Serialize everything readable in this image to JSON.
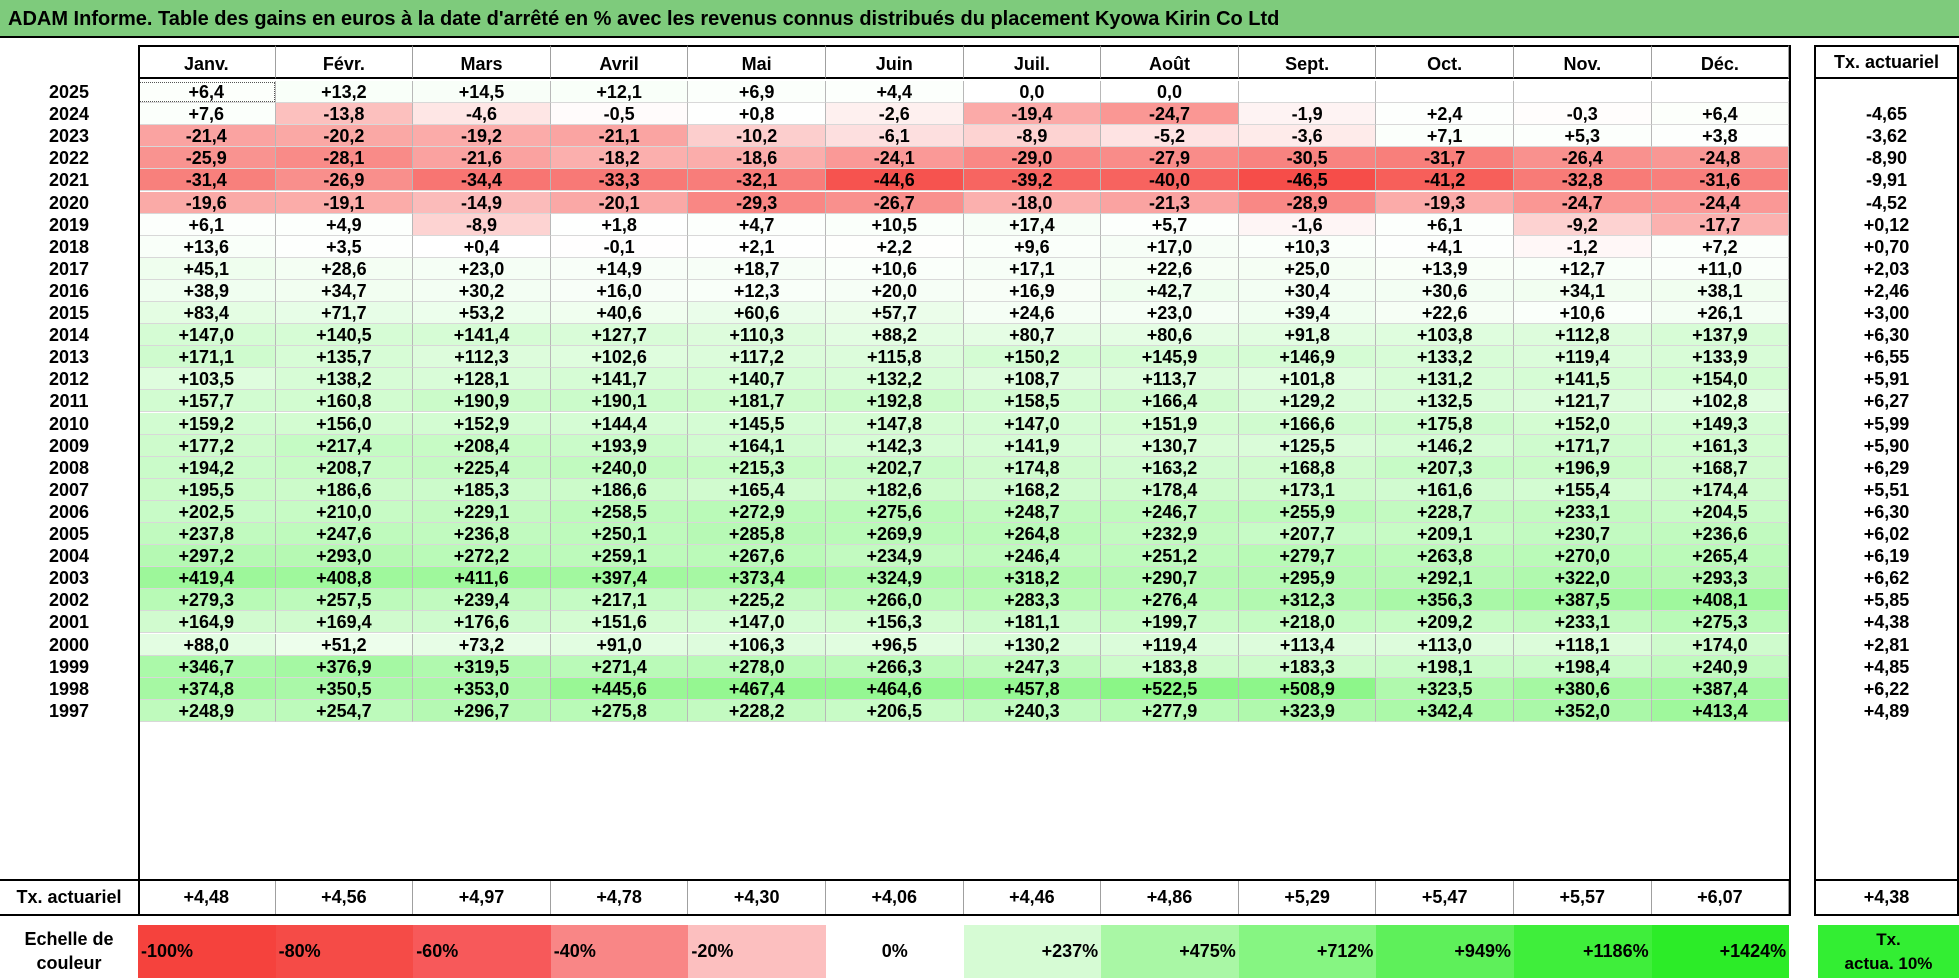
{
  "title": "ADAM Informe. Table des gains en euros à la date d'arrêté en % avec les revenus connus distribués du placement Kyowa Kirin Co Ltd",
  "months": [
    "Janv.",
    "Févr.",
    "Mars",
    "Avril",
    "Mai",
    "Juin",
    "Juil.",
    "Août",
    "Sept.",
    "Oct.",
    "Nov.",
    "Déc."
  ],
  "rate_header": "Tx. actuariel",
  "rows": [
    {
      "year": "2025",
      "values": [
        "+6,4",
        "+13,2",
        "+14,5",
        "+12,1",
        "+6,9",
        "+4,4",
        "0,0",
        "0,0",
        "",
        "",
        "",
        ""
      ],
      "rate": ""
    },
    {
      "year": "2024",
      "values": [
        "+7,6",
        "-13,8",
        "-4,6",
        "-0,5",
        "+0,8",
        "-2,6",
        "-19,4",
        "-24,7",
        "-1,9",
        "+2,4",
        "-0,3",
        "+6,4"
      ],
      "rate": "-4,65"
    },
    {
      "year": "2023",
      "values": [
        "-21,4",
        "-20,2",
        "-19,2",
        "-21,1",
        "-10,2",
        "-6,1",
        "-8,9",
        "-5,2",
        "-3,6",
        "+7,1",
        "+5,3",
        "+3,8"
      ],
      "rate": "-3,62"
    },
    {
      "year": "2022",
      "values": [
        "-25,9",
        "-28,1",
        "-21,6",
        "-18,2",
        "-18,6",
        "-24,1",
        "-29,0",
        "-27,9",
        "-30,5",
        "-31,7",
        "-26,4",
        "-24,8"
      ],
      "rate": "-8,90"
    },
    {
      "year": "2021",
      "values": [
        "-31,4",
        "-26,9",
        "-34,4",
        "-33,3",
        "-32,1",
        "-44,6",
        "-39,2",
        "-40,0",
        "-46,5",
        "-41,2",
        "-32,8",
        "-31,6"
      ],
      "rate": "-9,91"
    },
    {
      "year": "2020",
      "values": [
        "-19,6",
        "-19,1",
        "-14,9",
        "-20,1",
        "-29,3",
        "-26,7",
        "-18,0",
        "-21,3",
        "-28,9",
        "-19,3",
        "-24,7",
        "-24,4"
      ],
      "rate": "-4,52"
    },
    {
      "year": "2019",
      "values": [
        "+6,1",
        "+4,9",
        "-8,9",
        "+1,8",
        "+4,7",
        "+10,5",
        "+17,4",
        "+5,7",
        "-1,6",
        "+6,1",
        "-9,2",
        "-17,7"
      ],
      "rate": "+0,12"
    },
    {
      "year": "2018",
      "values": [
        "+13,6",
        "+3,5",
        "+0,4",
        "-0,1",
        "+2,1",
        "+2,2",
        "+9,6",
        "+17,0",
        "+10,3",
        "+4,1",
        "-1,2",
        "+7,2"
      ],
      "rate": "+0,70"
    },
    {
      "year": "2017",
      "values": [
        "+45,1",
        "+28,6",
        "+23,0",
        "+14,9",
        "+18,7",
        "+10,6",
        "+17,1",
        "+22,6",
        "+25,0",
        "+13,9",
        "+12,7",
        "+11,0"
      ],
      "rate": "+2,03"
    },
    {
      "year": "2016",
      "values": [
        "+38,9",
        "+34,7",
        "+30,2",
        "+16,0",
        "+12,3",
        "+20,0",
        "+16,9",
        "+42,7",
        "+30,4",
        "+30,6",
        "+34,1",
        "+38,1"
      ],
      "rate": "+2,46"
    },
    {
      "year": "2015",
      "values": [
        "+83,4",
        "+71,7",
        "+53,2",
        "+40,6",
        "+60,6",
        "+57,7",
        "+24,6",
        "+23,0",
        "+39,4",
        "+22,6",
        "+10,6",
        "+26,1"
      ],
      "rate": "+3,00"
    },
    {
      "year": "2014",
      "values": [
        "+147,0",
        "+140,5",
        "+141,4",
        "+127,7",
        "+110,3",
        "+88,2",
        "+80,7",
        "+80,6",
        "+91,8",
        "+103,8",
        "+112,8",
        "+137,9"
      ],
      "rate": "+6,30"
    },
    {
      "year": "2013",
      "values": [
        "+171,1",
        "+135,7",
        "+112,3",
        "+102,6",
        "+117,2",
        "+115,8",
        "+150,2",
        "+145,9",
        "+146,9",
        "+133,2",
        "+119,4",
        "+133,9"
      ],
      "rate": "+6,55"
    },
    {
      "year": "2012",
      "values": [
        "+103,5",
        "+138,2",
        "+128,1",
        "+141,7",
        "+140,7",
        "+132,2",
        "+108,7",
        "+113,7",
        "+101,8",
        "+131,2",
        "+141,5",
        "+154,0"
      ],
      "rate": "+5,91"
    },
    {
      "year": "2011",
      "values": [
        "+157,7",
        "+160,8",
        "+190,9",
        "+190,1",
        "+181,7",
        "+192,8",
        "+158,5",
        "+166,4",
        "+129,2",
        "+132,5",
        "+121,7",
        "+102,8"
      ],
      "rate": "+6,27"
    },
    {
      "year": "2010",
      "values": [
        "+159,2",
        "+156,0",
        "+152,9",
        "+144,4",
        "+145,5",
        "+147,8",
        "+147,0",
        "+151,9",
        "+166,6",
        "+175,8",
        "+152,0",
        "+149,3"
      ],
      "rate": "+5,99"
    },
    {
      "year": "2009",
      "values": [
        "+177,2",
        "+217,4",
        "+208,4",
        "+193,9",
        "+164,1",
        "+142,3",
        "+141,9",
        "+130,7",
        "+125,5",
        "+146,2",
        "+171,7",
        "+161,3"
      ],
      "rate": "+5,90"
    },
    {
      "year": "2008",
      "values": [
        "+194,2",
        "+208,7",
        "+225,4",
        "+240,0",
        "+215,3",
        "+202,7",
        "+174,8",
        "+163,2",
        "+168,8",
        "+207,3",
        "+196,9",
        "+168,7"
      ],
      "rate": "+6,29"
    },
    {
      "year": "2007",
      "values": [
        "+195,5",
        "+186,6",
        "+185,3",
        "+186,6",
        "+165,4",
        "+182,6",
        "+168,2",
        "+178,4",
        "+173,1",
        "+161,6",
        "+155,4",
        "+174,4"
      ],
      "rate": "+5,51"
    },
    {
      "year": "2006",
      "values": [
        "+202,5",
        "+210,0",
        "+229,1",
        "+258,5",
        "+272,9",
        "+275,6",
        "+248,7",
        "+246,7",
        "+255,9",
        "+228,7",
        "+233,1",
        "+204,5"
      ],
      "rate": "+6,30"
    },
    {
      "year": "2005",
      "values": [
        "+237,8",
        "+247,6",
        "+236,8",
        "+250,1",
        "+285,8",
        "+269,9",
        "+264,8",
        "+232,9",
        "+207,7",
        "+209,1",
        "+230,7",
        "+236,6"
      ],
      "rate": "+6,02"
    },
    {
      "year": "2004",
      "values": [
        "+297,2",
        "+293,0",
        "+272,2",
        "+259,1",
        "+267,6",
        "+234,9",
        "+246,4",
        "+251,2",
        "+279,7",
        "+263,8",
        "+270,0",
        "+265,4"
      ],
      "rate": "+6,19"
    },
    {
      "year": "2003",
      "values": [
        "+419,4",
        "+408,8",
        "+411,6",
        "+397,4",
        "+373,4",
        "+324,9",
        "+318,2",
        "+290,7",
        "+295,9",
        "+292,1",
        "+322,0",
        "+293,3"
      ],
      "rate": "+6,62"
    },
    {
      "year": "2002",
      "values": [
        "+279,3",
        "+257,5",
        "+239,4",
        "+217,1",
        "+225,2",
        "+266,0",
        "+283,3",
        "+276,4",
        "+312,3",
        "+356,3",
        "+387,5",
        "+408,1"
      ],
      "rate": "+5,85"
    },
    {
      "year": "2001",
      "values": [
        "+164,9",
        "+169,4",
        "+176,6",
        "+151,6",
        "+147,0",
        "+156,3",
        "+181,1",
        "+199,7",
        "+218,0",
        "+209,2",
        "+233,1",
        "+275,3"
      ],
      "rate": "+4,38"
    },
    {
      "year": "2000",
      "values": [
        "+88,0",
        "+51,2",
        "+73,2",
        "+91,0",
        "+106,3",
        "+96,5",
        "+130,2",
        "+119,4",
        "+113,4",
        "+113,0",
        "+118,1",
        "+174,0"
      ],
      "rate": "+2,81"
    },
    {
      "year": "1999",
      "values": [
        "+346,7",
        "+376,9",
        "+319,5",
        "+271,4",
        "+278,0",
        "+266,3",
        "+247,3",
        "+183,8",
        "+183,3",
        "+198,1",
        "+198,4",
        "+240,9"
      ],
      "rate": "+4,85"
    },
    {
      "year": "1998",
      "values": [
        "+374,8",
        "+350,5",
        "+353,0",
        "+445,6",
        "+467,4",
        "+464,6",
        "+457,8",
        "+522,5",
        "+508,9",
        "+323,5",
        "+380,6",
        "+387,4"
      ],
      "rate": "+6,22"
    },
    {
      "year": "1997",
      "values": [
        "+248,9",
        "+254,7",
        "+296,7",
        "+275,8",
        "+228,2",
        "+206,5",
        "+240,3",
        "+277,9",
        "+323,9",
        "+342,4",
        "+352,0",
        "+413,4"
      ],
      "rate": "+4,89"
    }
  ],
  "summary": {
    "label": "Tx. actuariel",
    "values": [
      "+4,48",
      "+4,56",
      "+4,97",
      "+4,78",
      "+4,30",
      "+4,06",
      "+4,46",
      "+4,86",
      "+5,29",
      "+5,47",
      "+5,57",
      "+6,07"
    ],
    "rate": "+4,38"
  },
  "scale": {
    "label_line1": "Echelle de",
    "label_line2": "couleur",
    "steps": [
      {
        "label": "-100%",
        "color": "#f5423d",
        "align": "left"
      },
      {
        "label": "-80%",
        "color": "#f54b47",
        "align": "left"
      },
      {
        "label": "-60%",
        "color": "#f7595a",
        "align": "left"
      },
      {
        "label": "-40%",
        "color": "#f98686",
        "align": "left"
      },
      {
        "label": "-20%",
        "color": "#fcbfbf",
        "align": "left"
      },
      {
        "label": "0%",
        "color": "#ffffff",
        "align": "center"
      },
      {
        "label": "+237%",
        "color": "#d6fbd4",
        "align": "right"
      },
      {
        "label": "+475%",
        "color": "#a9f7a5",
        "align": "right"
      },
      {
        "label": "+712%",
        "color": "#86f582",
        "align": "right"
      },
      {
        "label": "+949%",
        "color": "#5ef05a",
        "align": "right"
      },
      {
        "label": "+1186%",
        "color": "#3fee3b",
        "align": "right"
      },
      {
        "label": "+1424%",
        "color": "#2cec28",
        "align": "right"
      }
    ],
    "actua_line1": "Tx.",
    "actua_line2": "actua. 10%",
    "actua_color": "#33ee33"
  },
  "colors": {
    "title_bar": "#7ecb7c",
    "negative_max": "#f5423d",
    "positive_max": "#2cec28"
  }
}
